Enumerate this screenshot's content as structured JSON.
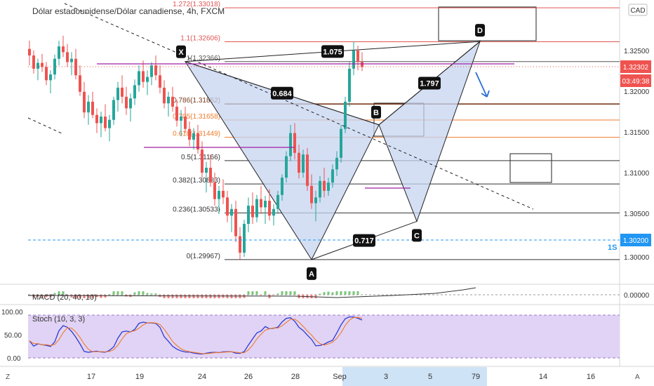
{
  "header": {
    "symbol_title": "Dólar estadounidense/Dólar canadiense, 4h, FXCM",
    "currency_badge": "CAD"
  },
  "price_axis": {
    "ticks": [
      "1.32500",
      "1.32000",
      "1.31500",
      "1.31000",
      "1.30500",
      "1.30000"
    ],
    "current_price": "1.32302",
    "countdown": "03:49:38",
    "alert_price": "1.30200",
    "alert_label": "1S"
  },
  "time_axis": {
    "ticks": [
      "17",
      "19",
      "24",
      "26",
      "28",
      "Sep",
      "3",
      "5",
      "7",
      "9",
      "14",
      "16"
    ]
  },
  "bottom_bar": {
    "left_label": "Z",
    "right_label": "A"
  },
  "fib_levels": [
    {
      "label": "1.272(1.33018)",
      "price": 1.33018,
      "color": "#e05555"
    },
    {
      "label": "1.1(1.32606)",
      "price": 1.32606,
      "color": "#e05555"
    },
    {
      "label": "1(1.32366)",
      "price": 1.32366,
      "color": "#555555"
    },
    {
      "label": "0.786(1.31852)",
      "price": 1.31852,
      "color": "#7a3b1e"
    },
    {
      "label": "0.705(1.31658)",
      "price": 1.31658,
      "color": "#f07b2b"
    },
    {
      "label": "0.618(1.31449)",
      "price": 1.31449,
      "color": "#f07b2b"
    },
    {
      "label": "0.5(1.31166)",
      "price": 1.31166,
      "color": "#333333"
    },
    {
      "label": "0.382(1.30883)",
      "price": 1.30883,
      "color": "#333333"
    },
    {
      "label": "0.236(1.30533)",
      "price": 1.30533,
      "color": "#333333"
    },
    {
      "label": "0(1.29967)",
      "price": 1.29967,
      "color": "#333333"
    }
  ],
  "pattern": {
    "points": {
      "X": "X",
      "A": "A",
      "B": "B",
      "C": "C",
      "D": "D"
    },
    "ratios": {
      "xab": "0.684",
      "abc": "0.717",
      "bcd": "1.797",
      "xad": "1.075"
    }
  },
  "indicators": {
    "macd_label": "MACD (20, 40, 10)",
    "macd_tick": "0.00000",
    "stoch_label": "Stoch (10, 3, 3)",
    "stoch_ticks": [
      "100.00",
      "50.00",
      "0.00"
    ]
  },
  "colors": {
    "up": "#26a69a",
    "down": "#ef5350",
    "price_badge": "#ef5350",
    "alert_badge": "#2196f3",
    "pattern_fill": "#c5d4f0",
    "stoch_bg": "#e1d3f5"
  },
  "chart_data": {
    "type": "candlestick",
    "timeframe": "4h",
    "y_range": [
      1.2972,
      1.3318
    ],
    "candles": [
      [
        1.3252,
        1.3262,
        1.3232,
        1.3244
      ],
      [
        1.3244,
        1.325,
        1.3222,
        1.3228
      ],
      [
        1.3228,
        1.324,
        1.3214,
        1.3235
      ],
      [
        1.3235,
        1.3246,
        1.3224,
        1.323
      ],
      [
        1.323,
        1.3236,
        1.3208,
        1.3214
      ],
      [
        1.3214,
        1.3226,
        1.3198,
        1.3221
      ],
      [
        1.3221,
        1.3245,
        1.3215,
        1.324
      ],
      [
        1.324,
        1.3262,
        1.3232,
        1.3255
      ],
      [
        1.3255,
        1.3268,
        1.3242,
        1.3248
      ],
      [
        1.3248,
        1.3258,
        1.323,
        1.3236
      ],
      [
        1.3236,
        1.3248,
        1.322,
        1.324
      ],
      [
        1.324,
        1.3252,
        1.3215,
        1.322
      ],
      [
        1.322,
        1.3232,
        1.3195,
        1.32
      ],
      [
        1.32,
        1.3212,
        1.3168,
        1.3175
      ],
      [
        1.3175,
        1.3196,
        1.316,
        1.3188
      ],
      [
        1.3188,
        1.32,
        1.3168,
        1.3172
      ],
      [
        1.3172,
        1.318,
        1.315,
        1.3162
      ],
      [
        1.3162,
        1.3176,
        1.3145,
        1.317
      ],
      [
        1.317,
        1.3185,
        1.3152,
        1.3156
      ],
      [
        1.3156,
        1.3172,
        1.314,
        1.3166
      ],
      [
        1.3166,
        1.3194,
        1.316,
        1.319
      ],
      [
        1.319,
        1.3212,
        1.3176,
        1.3205
      ],
      [
        1.3205,
        1.322,
        1.3186,
        1.3194
      ],
      [
        1.3194,
        1.3206,
        1.3172,
        1.318
      ],
      [
        1.318,
        1.3198,
        1.3164,
        1.3192
      ],
      [
        1.3192,
        1.3215,
        1.3184,
        1.3208
      ],
      [
        1.3208,
        1.3232,
        1.32,
        1.3225
      ],
      [
        1.3225,
        1.3238,
        1.3205,
        1.3212
      ],
      [
        1.3212,
        1.3226,
        1.3196,
        1.3218
      ],
      [
        1.3218,
        1.3236,
        1.3208,
        1.3232
      ],
      [
        1.3232,
        1.3244,
        1.3214,
        1.322
      ],
      [
        1.322,
        1.3232,
        1.3198,
        1.3205
      ],
      [
        1.3205,
        1.3214,
        1.318,
        1.3186
      ],
      [
        1.3186,
        1.32,
        1.317,
        1.3194
      ],
      [
        1.3194,
        1.3206,
        1.3176,
        1.3182
      ],
      [
        1.3182,
        1.319,
        1.3158,
        1.3165
      ],
      [
        1.3165,
        1.3178,
        1.3146,
        1.317
      ],
      [
        1.317,
        1.3182,
        1.315,
        1.3155
      ],
      [
        1.3155,
        1.3164,
        1.3134,
        1.3142
      ],
      [
        1.3142,
        1.3156,
        1.313,
        1.315
      ],
      [
        1.315,
        1.316,
        1.3125,
        1.313
      ],
      [
        1.313,
        1.314,
        1.3096,
        1.3102
      ],
      [
        1.3102,
        1.3115,
        1.3078,
        1.3108
      ],
      [
        1.3108,
        1.3124,
        1.3085,
        1.309
      ],
      [
        1.309,
        1.3102,
        1.3062,
        1.307
      ],
      [
        1.307,
        1.3086,
        1.3052,
        1.308
      ],
      [
        1.308,
        1.3094,
        1.3064,
        1.3072
      ],
      [
        1.3072,
        1.308,
        1.3042,
        1.305
      ],
      [
        1.305,
        1.3064,
        1.303,
        1.3058
      ],
      [
        1.3058,
        1.3068,
        1.3018,
        1.3025
      ],
      [
        1.3025,
        1.3036,
        1.2997,
        1.3005
      ],
      [
        1.3005,
        1.3045,
        1.3,
        1.304
      ],
      [
        1.304,
        1.3072,
        1.303,
        1.3062
      ],
      [
        1.3062,
        1.3078,
        1.304,
        1.3048
      ],
      [
        1.3048,
        1.3075,
        1.3042,
        1.307
      ],
      [
        1.307,
        1.3086,
        1.3052,
        1.306
      ],
      [
        1.306,
        1.3074,
        1.304,
        1.3068
      ],
      [
        1.3068,
        1.3082,
        1.3044,
        1.305
      ],
      [
        1.305,
        1.3064,
        1.3038,
        1.3058
      ],
      [
        1.3058,
        1.308,
        1.3052,
        1.3075
      ],
      [
        1.3075,
        1.31,
        1.3068,
        1.3096
      ],
      [
        1.3096,
        1.3128,
        1.309,
        1.3122
      ],
      [
        1.3122,
        1.316,
        1.3116,
        1.315
      ],
      [
        1.315,
        1.3162,
        1.3118,
        1.3126
      ],
      [
        1.3126,
        1.3136,
        1.3095,
        1.3102
      ],
      [
        1.3102,
        1.313,
        1.3096,
        1.3124
      ],
      [
        1.3124,
        1.3132,
        1.308,
        1.3086
      ],
      [
        1.3086,
        1.31,
        1.3058,
        1.3065
      ],
      [
        1.3065,
        1.308,
        1.3043,
        1.3072
      ],
      [
        1.3072,
        1.3098,
        1.3066,
        1.3092
      ],
      [
        1.3092,
        1.3108,
        1.3072,
        1.308
      ],
      [
        1.308,
        1.3096,
        1.3074,
        1.309
      ],
      [
        1.309,
        1.3112,
        1.3084,
        1.3106
      ],
      [
        1.3106,
        1.3128,
        1.3098,
        1.312
      ],
      [
        1.312,
        1.316,
        1.3114,
        1.3155
      ],
      [
        1.3155,
        1.3194,
        1.315,
        1.3188
      ],
      [
        1.3188,
        1.3236,
        1.3182,
        1.3228
      ],
      [
        1.3228,
        1.3261,
        1.322,
        1.325
      ],
      [
        1.325,
        1.3256,
        1.3226,
        1.3236
      ],
      [
        1.3236,
        1.3248,
        1.3225,
        1.323
      ]
    ],
    "pattern_points": {
      "X": {
        "candle": 37,
        "price": 1.32366
      },
      "A": {
        "candle": 67,
        "price": 1.29967
      },
      "B": {
        "candle": 83,
        "price": 1.316
      },
      "C": {
        "candle": 92,
        "price": 1.3043
      },
      "D": {
        "candle": 107,
        "price": 1.3261
      }
    }
  }
}
